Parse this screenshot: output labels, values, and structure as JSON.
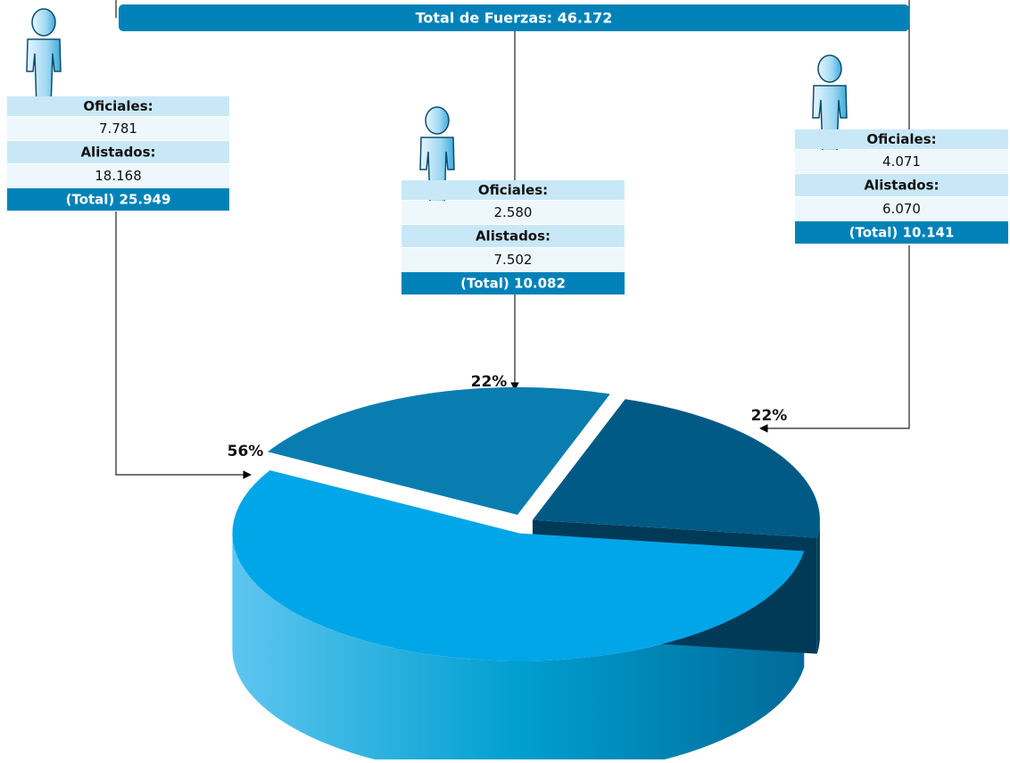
{
  "title": "Total de Fuerzas: 46.172",
  "boxes": [
    {
      "rows": [
        "Oficiales:",
        "7.781",
        "Alistados:",
        "18.168",
        "(Total) 25.949"
      ]
    },
    {
      "rows": [
        "Oficiales:",
        "2.580",
        "Alistados:",
        "7.502",
        "(Total) 10.082"
      ]
    },
    {
      "rows": [
        "Oficiales:",
        "4.071",
        "Alistados:",
        "6.070",
        "(Total) 10.141"
      ]
    }
  ],
  "chart_data": {
    "type": "pie",
    "values": [
      56,
      22,
      22
    ],
    "value_labels": [
      "56%",
      "22%",
      "22%"
    ],
    "colors": [
      "#00a6e8",
      "#0a7db0",
      "#005a85"
    ]
  }
}
